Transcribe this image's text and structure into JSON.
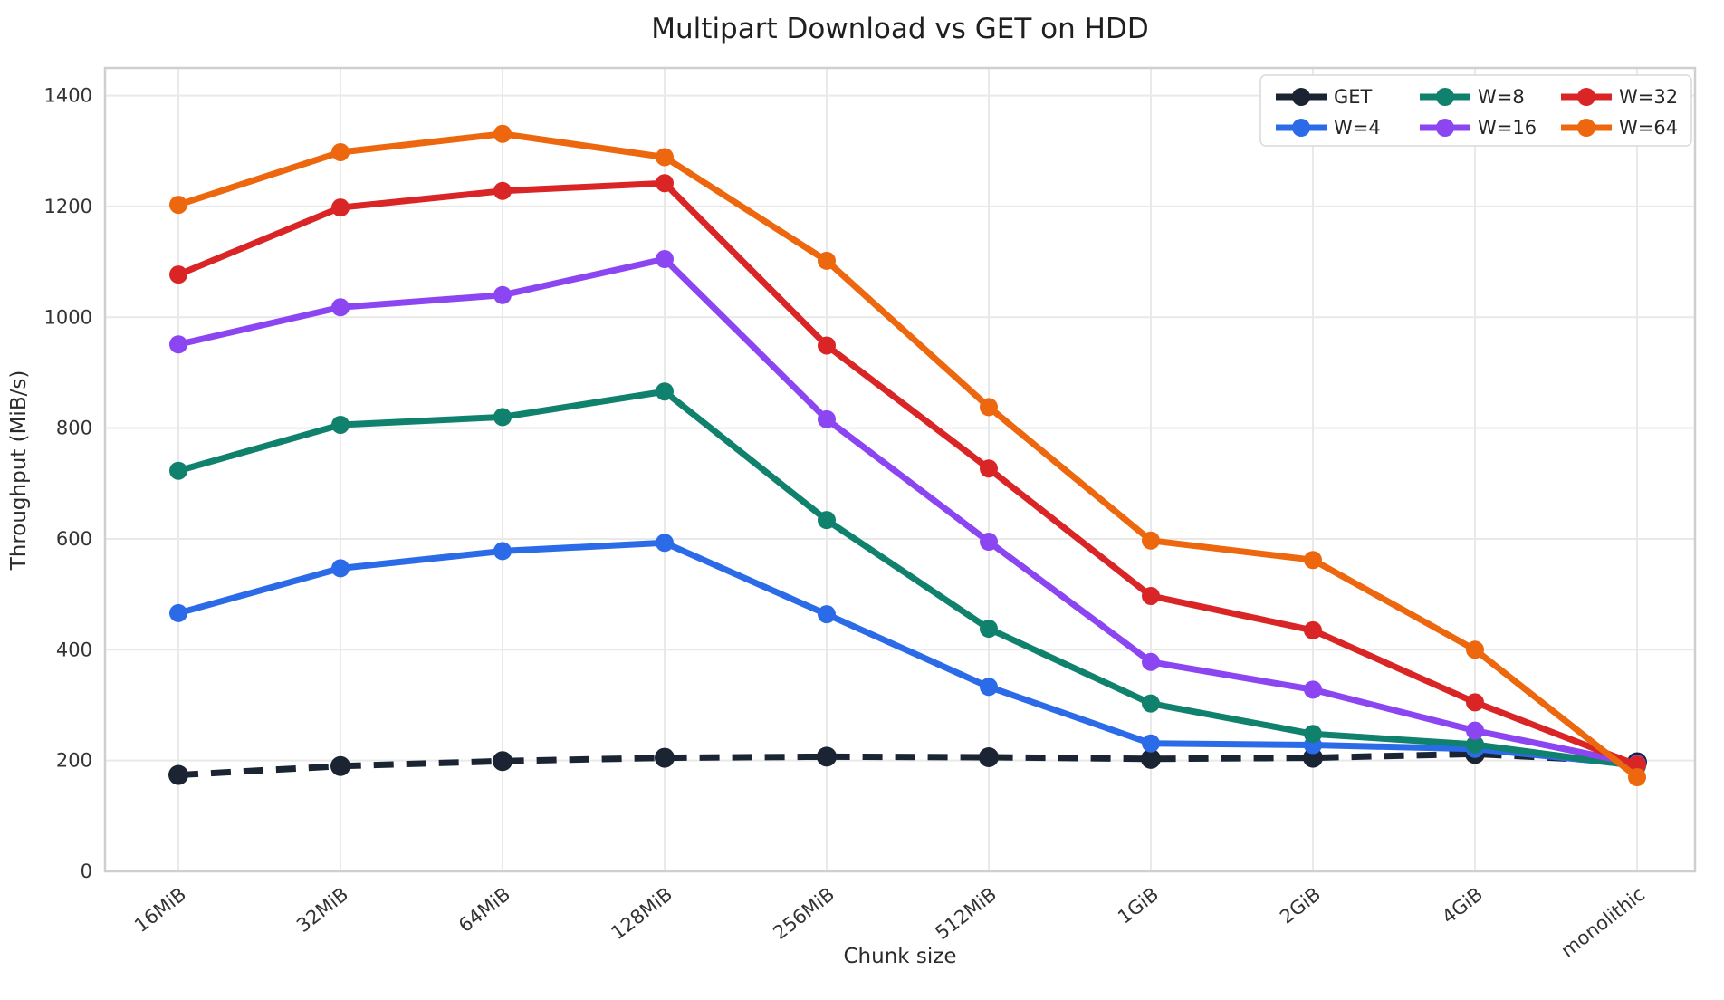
{
  "chart_data": {
    "type": "line",
    "title": "Multipart Download vs GET on HDD",
    "xlabel": "Chunk size",
    "ylabel": "Throughput (MiB/s)",
    "categories": [
      "16MiB",
      "32MiB",
      "64MiB",
      "128MiB",
      "256MiB",
      "512MiB",
      "1GiB",
      "2GiB",
      "4GiB",
      "monolithic"
    ],
    "yticks": [
      0,
      200,
      400,
      600,
      800,
      1000,
      1200,
      1400
    ],
    "ylim": [
      0,
      1450
    ],
    "grid": true,
    "legend_position": "upper right",
    "legend_columns": 3,
    "colors": {
      "grid": "#e9e9e9",
      "spine": "#cfcfcf",
      "legend_border": "#d9d9d9",
      "legend_bg": "#ffffff"
    },
    "series": [
      {
        "name": "GET",
        "color": "#1b2433",
        "dashed": true,
        "values": [
          174,
          190,
          199,
          205,
          207,
          206,
          203,
          205,
          212,
          197
        ]
      },
      {
        "name": "W=4",
        "color": "#2c6be8",
        "dashed": false,
        "values": [
          466,
          547,
          578,
          593,
          464,
          333,
          231,
          228,
          221,
          192
        ]
      },
      {
        "name": "W=8",
        "color": "#10816d",
        "dashed": false,
        "values": [
          723,
          806,
          820,
          866,
          634,
          438,
          303,
          248,
          229,
          190
        ]
      },
      {
        "name": "W=16",
        "color": "#8b46f2",
        "dashed": false,
        "values": [
          951,
          1018,
          1040,
          1105,
          816,
          595,
          378,
          328,
          254,
          194
        ]
      },
      {
        "name": "W=32",
        "color": "#d92525",
        "dashed": false,
        "values": [
          1077,
          1198,
          1228,
          1242,
          949,
          727,
          497,
          435,
          305,
          192
        ]
      },
      {
        "name": "W=64",
        "color": "#ec670d",
        "dashed": false,
        "values": [
          1203,
          1298,
          1331,
          1289,
          1102,
          838,
          597,
          562,
          400,
          170
        ]
      }
    ]
  }
}
